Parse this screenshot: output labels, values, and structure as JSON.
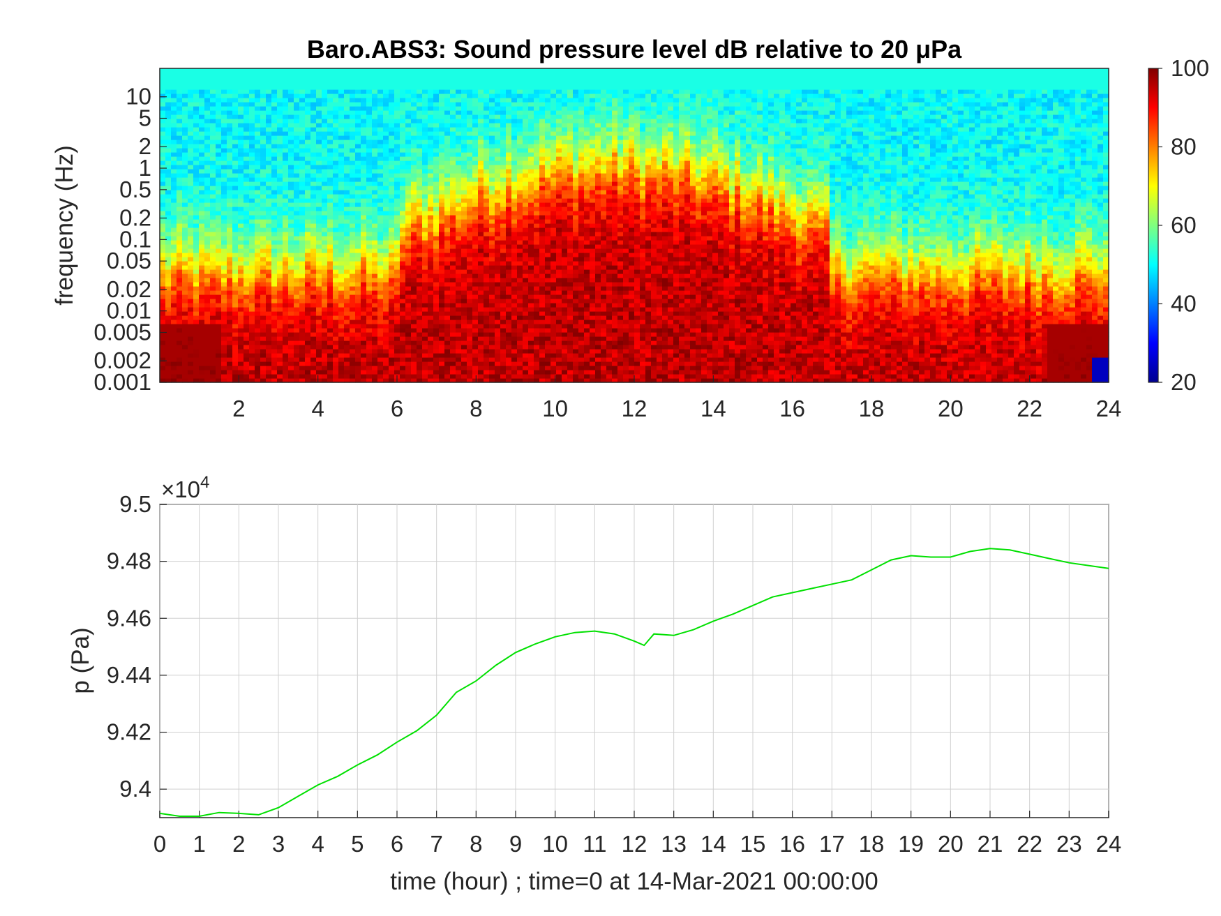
{
  "chart_data": [
    {
      "type": "heatmap",
      "title": "Baro.ABS3: Sound pressure level dB relative to 20 μPa",
      "ylabel": "frequency (Hz)",
      "xlabel": "",
      "x_ticks": [
        "2",
        "4",
        "6",
        "8",
        "10",
        "12",
        "14",
        "16",
        "18",
        "20",
        "22",
        "24"
      ],
      "xlim": [
        0,
        24
      ],
      "y_scale": "log",
      "ylim": [
        0.001,
        25
      ],
      "y_ticks": [
        "10",
        "5",
        "2",
        "1",
        "0.5",
        "0.2",
        "0.1",
        "0.05",
        "0.02",
        "0.01",
        "0.005",
        "0.002",
        "0.001"
      ],
      "colorbar": {
        "range": [
          20,
          100
        ],
        "ticks": [
          "100",
          "80",
          "60",
          "40",
          "20"
        ],
        "colormap": "jet"
      },
      "high_activity_hours": [
        7,
        16
      ],
      "color_scale_colors": [
        "#00008f",
        "#0000ff",
        "#00ffff",
        "#ffff00",
        "#ff0000",
        "#800000"
      ]
    },
    {
      "type": "line",
      "xlabel": "time (hour) ; time=0 at 14-Mar-2021 00:00:00",
      "ylabel": "p (Pa)",
      "y_exponent_label": "×10",
      "y_exponent_power": "4",
      "xlim": [
        0,
        24
      ],
      "ylim": [
        9.39,
        9.5
      ],
      "x_ticks": [
        "0",
        "1",
        "2",
        "3",
        "4",
        "5",
        "6",
        "7",
        "8",
        "9",
        "10",
        "11",
        "12",
        "13",
        "14",
        "15",
        "16",
        "17",
        "18",
        "19",
        "20",
        "21",
        "22",
        "23",
        "24"
      ],
      "y_ticks": [
        "9.5",
        "9.48",
        "9.46",
        "9.44",
        "9.42",
        "9.4"
      ],
      "grid": true,
      "line_color": "#00e000",
      "series": [
        {
          "x": [
            0,
            0.5,
            1,
            1.5,
            2,
            2.5,
            3,
            3.5,
            4,
            4.5,
            5,
            5.5,
            6,
            6.5,
            7,
            7.5,
            8,
            8.5,
            9,
            9.5,
            10,
            10.5,
            11,
            11.5,
            12,
            12.25,
            12.5,
            13,
            13.5,
            14,
            14.5,
            15,
            15.5,
            16,
            16.5,
            17,
            17.5,
            18,
            18.5,
            19,
            19.5,
            20,
            20.5,
            21,
            21.5,
            22,
            22.5,
            23,
            23.5,
            24
          ],
          "y": [
            9.3915,
            9.3905,
            9.3905,
            9.3918,
            9.3915,
            9.391,
            9.3935,
            9.3975,
            9.4015,
            9.4045,
            9.4085,
            9.412,
            9.4165,
            9.4205,
            9.426,
            9.434,
            9.438,
            9.4435,
            9.448,
            9.451,
            9.4535,
            9.455,
            9.4555,
            9.4545,
            9.452,
            9.4505,
            9.4545,
            9.454,
            9.456,
            9.459,
            9.4615,
            9.4645,
            9.4675,
            9.469,
            9.4705,
            9.472,
            9.4735,
            9.477,
            9.4805,
            9.482,
            9.4815,
            9.4815,
            9.4835,
            9.4845,
            9.484,
            9.4825,
            9.481,
            9.4795,
            9.4785,
            9.4775
          ]
        }
      ]
    }
  ]
}
